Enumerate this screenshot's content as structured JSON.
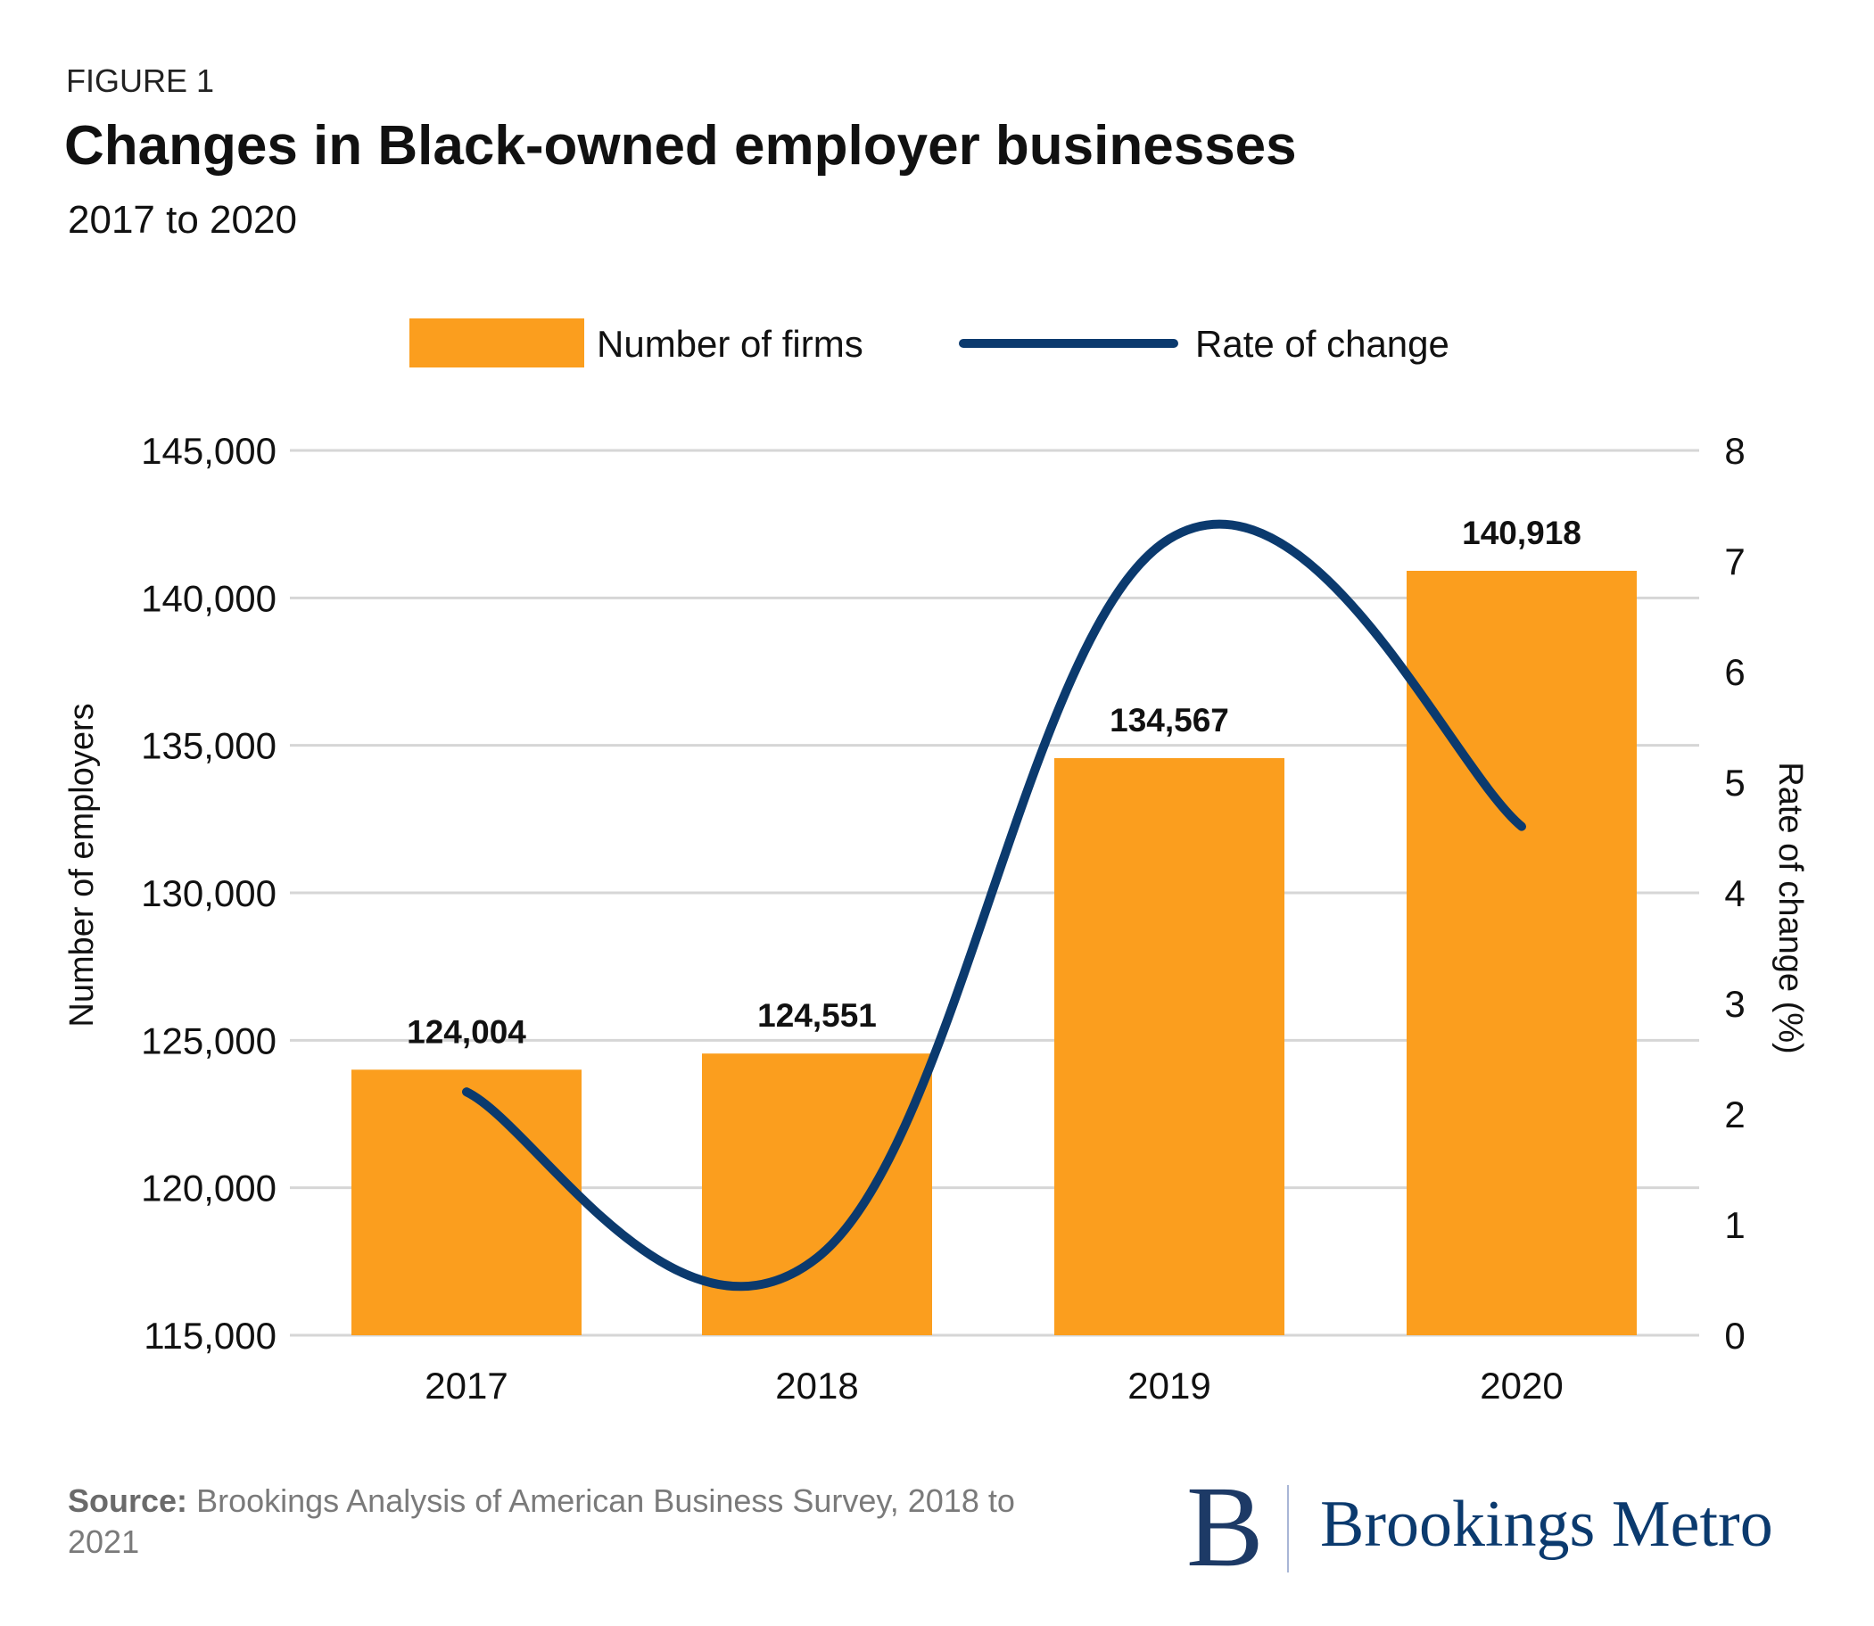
{
  "figure_label": "FIGURE 1",
  "title": "Changes in Black-owned employer businesses",
  "subtitle": "2017 to 2020",
  "source_label": "Source:",
  "source_text": "Brookings Analysis of American Business Survey, 2018 to 2021",
  "logo": {
    "mark": "B",
    "text": "Brookings Metro"
  },
  "colors": {
    "bars": "#FB9E1E",
    "line": "#0B3A6E",
    "grid": "#D6D6D6"
  },
  "chart_data": {
    "type": "bar+line",
    "categories": [
      "2017",
      "2018",
      "2019",
      "2020"
    ],
    "series": [
      {
        "name": "Number of firms",
        "type": "bar",
        "axis": "left",
        "values": [
          124004,
          124551,
          134567,
          140918
        ],
        "labels": [
          "124,004",
          "124,551",
          "134,567",
          "140,918"
        ]
      },
      {
        "name": "Rate of change",
        "type": "line",
        "axis": "right",
        "values": [
          2.2,
          0.7,
          7.2,
          4.6
        ]
      }
    ],
    "ylabel": "Number of employers",
    "y2label": "Rate of change (%)",
    "ylim": [
      115000,
      145000
    ],
    "yticks": [
      "115,000",
      "120,000",
      "125,000",
      "130,000",
      "135,000",
      "140,000",
      "145,000"
    ],
    "y2lim": [
      0,
      8
    ],
    "y2ticks": [
      "0",
      "1",
      "2",
      "3",
      "4",
      "5",
      "6",
      "7",
      "8"
    ],
    "grid": true,
    "legend": "top-center"
  }
}
